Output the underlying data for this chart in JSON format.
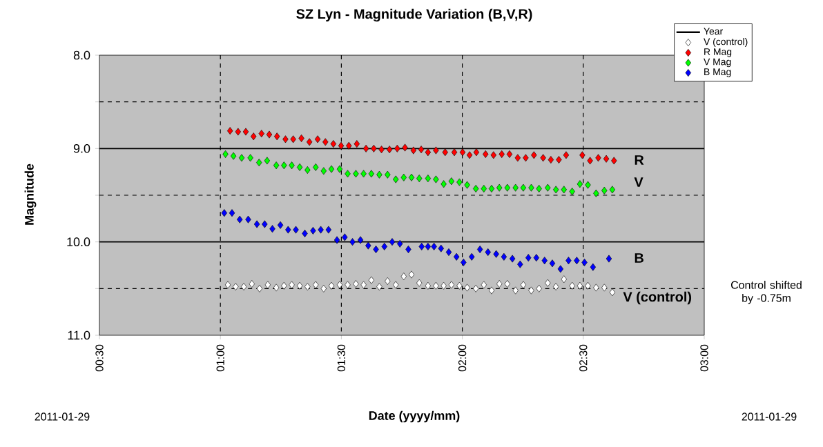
{
  "chart_data": {
    "type": "scatter",
    "title": "SZ Lyn - Magnitude Variation (B,V,R)",
    "xlabel": "Date (yyyy/mm)",
    "ylabel": "Magnitude",
    "xlim": [
      0.5,
      3.0
    ],
    "xticks": [
      {
        "value": 0.5,
        "label": "00:30"
      },
      {
        "value": 1.0,
        "label": "01:00"
      },
      {
        "value": 1.5,
        "label": "01:30"
      },
      {
        "value": 2.0,
        "label": "02:00"
      },
      {
        "value": 2.5,
        "label": "02:30"
      },
      {
        "value": 3.0,
        "label": "03:00"
      }
    ],
    "ylim": [
      11.0,
      8.0
    ],
    "yticks": [
      {
        "value": 8,
        "label": "8.0"
      },
      {
        "value": 8.5,
        "label": null
      },
      {
        "value": 9,
        "label": "9.0"
      },
      {
        "value": 9.5,
        "label": null
      },
      {
        "value": 10,
        "label": "10.0"
      },
      {
        "value": 10.5,
        "label": null
      },
      {
        "value": 11,
        "label": "11.0"
      }
    ],
    "grid": true,
    "legend": "top right",
    "marker": "diamond",
    "series": [
      {
        "name": "Year",
        "type": "line",
        "color": "#000000"
      },
      {
        "name": "V (control)",
        "color": "#ffffff",
        "x": [
          1.031,
          1.063,
          1.097,
          1.13,
          1.162,
          1.196,
          1.231,
          1.263,
          1.295,
          1.328,
          1.36,
          1.394,
          1.427,
          1.459,
          1.493,
          1.526,
          1.56,
          1.592,
          1.624,
          1.657,
          1.691,
          1.725,
          1.758,
          1.79,
          1.822,
          1.858,
          1.891,
          1.923,
          1.955,
          1.988,
          2.02,
          2.056,
          2.089,
          2.121,
          2.153,
          2.186,
          2.22,
          2.252,
          2.285,
          2.317,
          2.353,
          2.387,
          2.42,
          2.454,
          2.486,
          2.519,
          2.553,
          2.587,
          2.62
        ],
        "values": [
          10.46,
          10.48,
          10.48,
          10.45,
          10.5,
          10.46,
          10.49,
          10.47,
          10.46,
          10.47,
          10.48,
          10.46,
          10.5,
          10.47,
          10.46,
          10.46,
          10.45,
          10.46,
          10.41,
          10.48,
          10.42,
          10.46,
          10.37,
          10.35,
          10.44,
          10.47,
          10.47,
          10.47,
          10.46,
          10.47,
          10.49,
          10.5,
          10.46,
          10.52,
          10.45,
          10.45,
          10.52,
          10.46,
          10.52,
          10.5,
          10.44,
          10.48,
          10.4,
          10.47,
          10.47,
          10.47,
          10.49,
          10.49,
          10.54
        ]
      },
      {
        "name": "R Mag",
        "color": "#ff0000",
        "x": [
          1.04,
          1.073,
          1.105,
          1.137,
          1.17,
          1.202,
          1.234,
          1.269,
          1.301,
          1.335,
          1.368,
          1.402,
          1.434,
          1.467,
          1.499,
          1.531,
          1.564,
          1.602,
          1.634,
          1.666,
          1.699,
          1.731,
          1.763,
          1.798,
          1.83,
          1.858,
          1.891,
          1.929,
          1.967,
          2.001,
          2.03,
          2.058,
          2.096,
          2.129,
          2.163,
          2.195,
          2.229,
          2.262,
          2.296,
          2.334,
          2.366,
          2.399,
          2.429,
          2.496,
          2.528,
          2.562,
          2.595,
          2.627
        ],
        "values": [
          8.81,
          8.82,
          8.82,
          8.87,
          8.84,
          8.85,
          8.87,
          8.9,
          8.9,
          8.89,
          8.93,
          8.9,
          8.93,
          8.95,
          8.97,
          8.97,
          8.95,
          9.0,
          9.0,
          9.01,
          9.01,
          9.0,
          8.99,
          9.02,
          9.01,
          9.04,
          9.02,
          9.04,
          9.04,
          9.04,
          9.07,
          9.04,
          9.06,
          9.07,
          9.06,
          9.06,
          9.1,
          9.1,
          9.07,
          9.1,
          9.12,
          9.12,
          9.07,
          9.07,
          9.13,
          9.1,
          9.11,
          9.13
        ]
      },
      {
        "name": "V Mag",
        "color": "#00ff00",
        "x": [
          1.021,
          1.054,
          1.088,
          1.124,
          1.16,
          1.193,
          1.231,
          1.263,
          1.295,
          1.328,
          1.36,
          1.394,
          1.427,
          1.459,
          1.493,
          1.526,
          1.56,
          1.592,
          1.624,
          1.657,
          1.691,
          1.725,
          1.758,
          1.79,
          1.822,
          1.858,
          1.891,
          1.923,
          1.955,
          1.988,
          2.02,
          2.056,
          2.089,
          2.121,
          2.153,
          2.186,
          2.22,
          2.252,
          2.285,
          2.317,
          2.353,
          2.387,
          2.42,
          2.454,
          2.486,
          2.519,
          2.553,
          2.587,
          2.62
        ],
        "values": [
          9.06,
          9.08,
          9.1,
          9.1,
          9.15,
          9.13,
          9.18,
          9.18,
          9.18,
          9.2,
          9.23,
          9.2,
          9.24,
          9.22,
          9.22,
          9.27,
          9.27,
          9.27,
          9.27,
          9.28,
          9.28,
          9.33,
          9.31,
          9.31,
          9.32,
          9.32,
          9.33,
          9.38,
          9.35,
          9.36,
          9.39,
          9.43,
          9.43,
          9.43,
          9.42,
          9.42,
          9.42,
          9.42,
          9.42,
          9.43,
          9.42,
          9.44,
          9.44,
          9.46,
          9.38,
          9.39,
          9.48,
          9.45,
          9.44
        ]
      },
      {
        "name": "B Mag",
        "color": "#0000ff",
        "x": [
          1.016,
          1.048,
          1.08,
          1.115,
          1.151,
          1.183,
          1.215,
          1.248,
          1.28,
          1.312,
          1.349,
          1.383,
          1.415,
          1.447,
          1.482,
          1.514,
          1.546,
          1.579,
          1.611,
          1.643,
          1.678,
          1.71,
          1.742,
          1.777,
          1.832,
          1.858,
          1.883,
          1.912,
          1.944,
          1.976,
          2.005,
          2.039,
          2.073,
          2.106,
          2.14,
          2.172,
          2.207,
          2.239,
          2.273,
          2.306,
          2.34,
          2.372,
          2.406,
          2.439,
          2.473,
          2.505,
          2.54,
          2.606
        ],
        "values": [
          9.69,
          9.69,
          9.76,
          9.76,
          9.81,
          9.81,
          9.86,
          9.82,
          9.87,
          9.87,
          9.91,
          9.88,
          9.87,
          9.87,
          9.98,
          9.95,
          10.0,
          9.98,
          10.04,
          10.08,
          10.05,
          10.0,
          10.02,
          10.08,
          10.05,
          10.05,
          10.05,
          10.07,
          10.11,
          10.16,
          10.22,
          10.16,
          10.08,
          10.11,
          10.13,
          10.16,
          10.18,
          10.24,
          10.17,
          10.17,
          10.2,
          10.23,
          10.29,
          10.2,
          10.2,
          10.22,
          10.27,
          10.18
        ]
      }
    ],
    "annotations": [
      "R",
      "V",
      "B",
      "V (control)",
      "Control shifted by -0.75m",
      "2011-01-29",
      "2011-01-29"
    ]
  }
}
